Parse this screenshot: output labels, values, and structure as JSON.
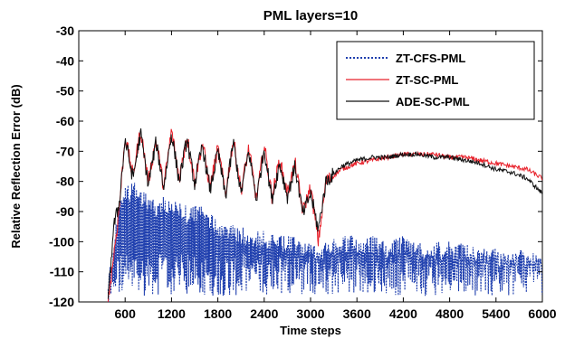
{
  "chart_data": {
    "type": "line",
    "title": "PML layers=10",
    "xlabel": "Time steps",
    "ylabel": "Relative Reflection Error (dB)",
    "xlim": [
      0,
      6000
    ],
    "ylim": [
      -120,
      -30
    ],
    "x_ticks": [
      600,
      1200,
      1800,
      2400,
      3000,
      3600,
      4200,
      4800,
      5400,
      6000
    ],
    "x_tick_labels": [
      "600",
      "1200",
      "1800",
      "2400",
      "3000",
      "3600",
      "4200",
      "4800",
      "5400",
      "6000"
    ],
    "y_ticks": [
      -30,
      -40,
      -50,
      -60,
      -70,
      -80,
      -90,
      -100,
      -110,
      -120
    ],
    "y_tick_labels": [
      "-30",
      "-40",
      "-50",
      "-60",
      "-70",
      "-80",
      "-90",
      "-100",
      "-110",
      "-120"
    ],
    "grid": false,
    "legend_position": "top-right",
    "series": [
      {
        "name": "ZT-CFS-PML",
        "color": "#1f3fae",
        "style": "dotted",
        "x": [
          380,
          450,
          520,
          600,
          700,
          800,
          900,
          1000,
          1100,
          1200,
          1400,
          1600,
          1800,
          2000,
          2200,
          2400,
          2600,
          2800,
          3000,
          3200,
          3400,
          3600,
          3800,
          4000,
          4200,
          4400,
          4600,
          4800,
          5000,
          5200,
          5400,
          5600,
          5800,
          6000
        ],
        "y": [
          -120,
          -98,
          -85,
          -82,
          -80,
          -82,
          -84,
          -86,
          -85,
          -86,
          -88,
          -88,
          -92,
          -94,
          -96,
          -96,
          -98,
          -98,
          -100,
          -100,
          -98,
          -98,
          -98,
          -100,
          -98,
          -100,
          -100,
          -100,
          -100,
          -102,
          -102,
          -104,
          -102,
          -104
        ],
        "y_min": [
          -120,
          -120,
          -118,
          -118,
          -118,
          -118,
          -118,
          -118,
          -118,
          -118,
          -118,
          -118,
          -118,
          -118,
          -118,
          -118,
          -118,
          -118,
          -118,
          -118,
          -118,
          -118,
          -118,
          -118,
          -118,
          -118,
          -118,
          -118,
          -118,
          -118,
          -118,
          -118,
          -118,
          -118
        ]
      },
      {
        "name": "ZT-SC-PML",
        "color": "#e8202a",
        "style": "solid",
        "x": [
          380,
          450,
          520,
          600,
          700,
          800,
          900,
          1000,
          1100,
          1200,
          1300,
          1400,
          1500,
          1600,
          1700,
          1800,
          1900,
          2000,
          2100,
          2200,
          2300,
          2400,
          2500,
          2600,
          2700,
          2800,
          2900,
          3000,
          3100,
          3200,
          3400,
          3600,
          3800,
          4000,
          4200,
          4400,
          4600,
          4800,
          5000,
          5200,
          5400,
          5600,
          5800,
          6000
        ],
        "y": [
          -120,
          -105,
          -90,
          -65,
          -78,
          -63,
          -80,
          -66,
          -82,
          -63,
          -79,
          -65,
          -80,
          -67,
          -82,
          -69,
          -84,
          -66,
          -83,
          -69,
          -86,
          -68,
          -85,
          -73,
          -84,
          -74,
          -90,
          -82,
          -100,
          -80,
          -76,
          -74,
          -73,
          -72,
          -71,
          -71,
          -71,
          -72,
          -72,
          -73,
          -74,
          -75,
          -76,
          -79
        ]
      },
      {
        "name": "ADE-SC-PML",
        "color": "#111111",
        "style": "solid",
        "x": [
          380,
          450,
          520,
          600,
          700,
          800,
          900,
          1000,
          1100,
          1200,
          1300,
          1400,
          1500,
          1600,
          1700,
          1800,
          1900,
          2000,
          2100,
          2200,
          2300,
          2400,
          2500,
          2600,
          2700,
          2800,
          2900,
          3000,
          3100,
          3200,
          3400,
          3600,
          3800,
          4000,
          4200,
          4400,
          4600,
          4800,
          5000,
          5200,
          5400,
          5600,
          5800,
          6000
        ],
        "y": [
          -120,
          -95,
          -88,
          -66,
          -79,
          -64,
          -81,
          -67,
          -82,
          -64,
          -80,
          -66,
          -81,
          -68,
          -83,
          -70,
          -85,
          -67,
          -84,
          -70,
          -86,
          -69,
          -86,
          -74,
          -85,
          -75,
          -91,
          -84,
          -96,
          -80,
          -75,
          -73,
          -72,
          -72,
          -71,
          -71,
          -72,
          -72,
          -73,
          -74,
          -76,
          -77,
          -79,
          -84
        ]
      }
    ]
  }
}
